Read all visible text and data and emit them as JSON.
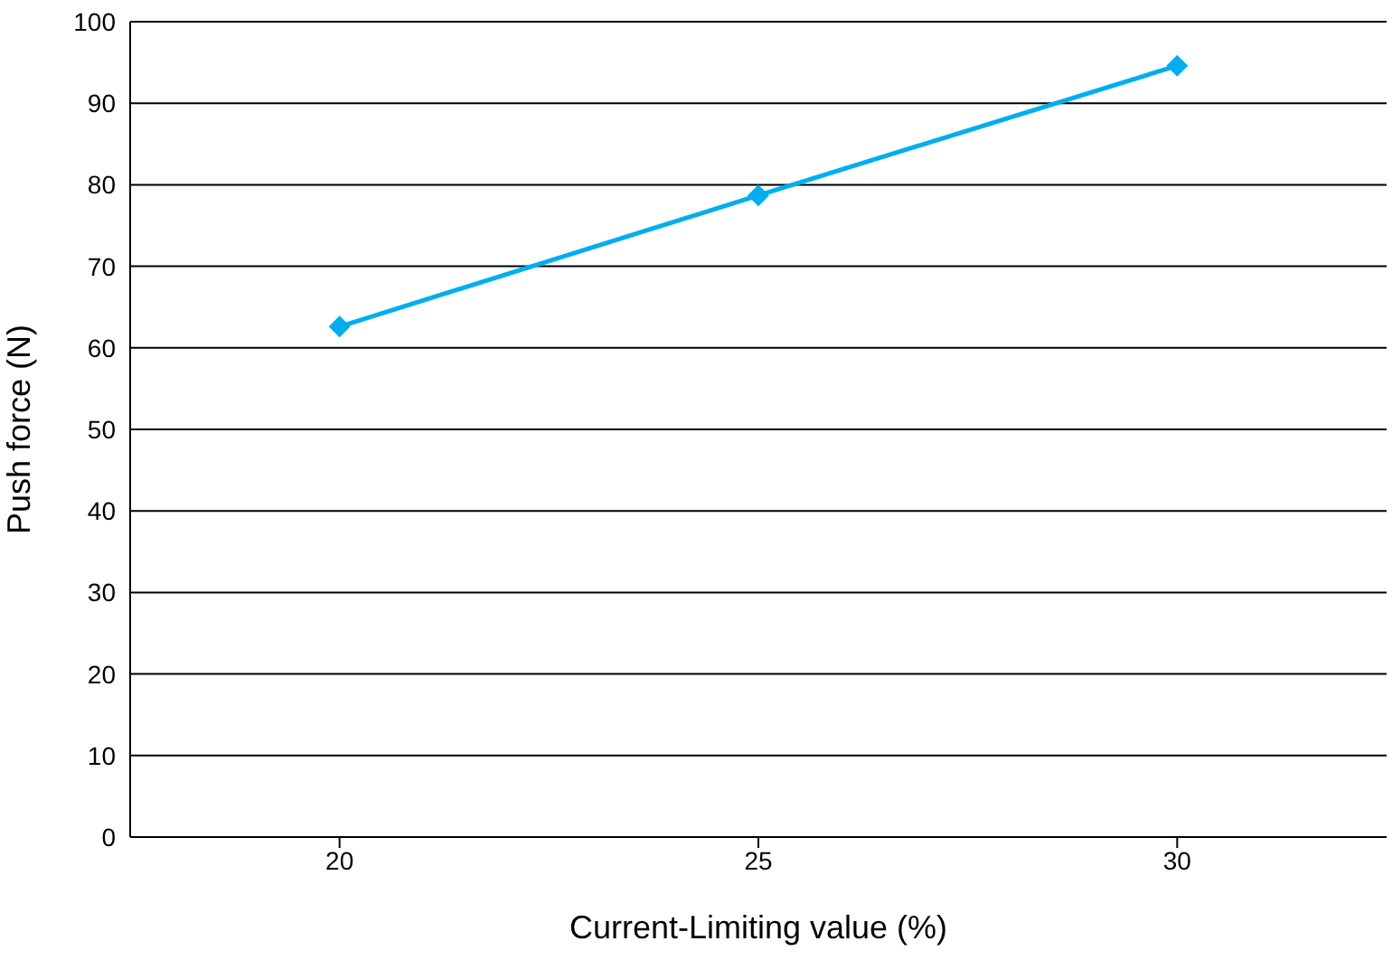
{
  "chart_data": {
    "type": "line",
    "xlabel": "Current-Limiting value (%)",
    "ylabel": "Push force (N)",
    "x": [
      20,
      25,
      30
    ],
    "series": [
      {
        "color": "#00aeef",
        "values": [
          62.6,
          78.7,
          94.6
        ]
      }
    ],
    "xlim": [
      17.5,
      32.5
    ],
    "xticks": [
      20,
      25,
      30
    ],
    "ylim": [
      0,
      100
    ],
    "yticks": [
      0,
      10,
      20,
      30,
      40,
      50,
      60,
      70,
      80,
      90,
      100
    ],
    "grid": "y",
    "marker": "diamond",
    "line_style": "solid",
    "legend": false
  }
}
